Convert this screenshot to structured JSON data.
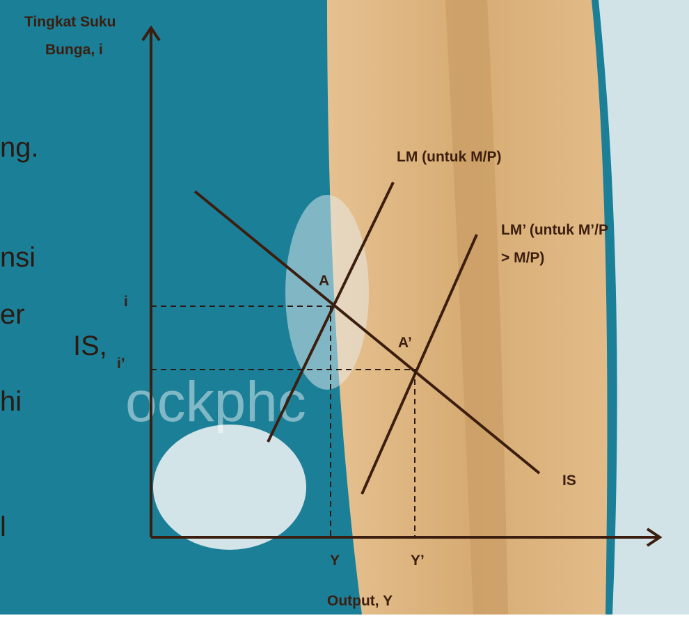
{
  "axes": {
    "y_label_line1": "Tingkat Suku",
    "y_label_line2": "Bunga, i",
    "x_label": "Output, Y"
  },
  "curves": {
    "lm": "LM (untuk M/P)",
    "lm_prime_line1": "LM’ (untuk M’/P",
    "lm_prime_line2": "> M/P)",
    "is": "IS"
  },
  "points": {
    "a": "A",
    "a_prime": "A’"
  },
  "levels": {
    "i": "i",
    "i_prime": "i’",
    "y": "Y",
    "y_prime": "Y’"
  },
  "background_text": [
    "ng.",
    "nsi",
    "er",
    "IS,",
    "hi",
    "l"
  ],
  "watermark": "ockphc"
}
